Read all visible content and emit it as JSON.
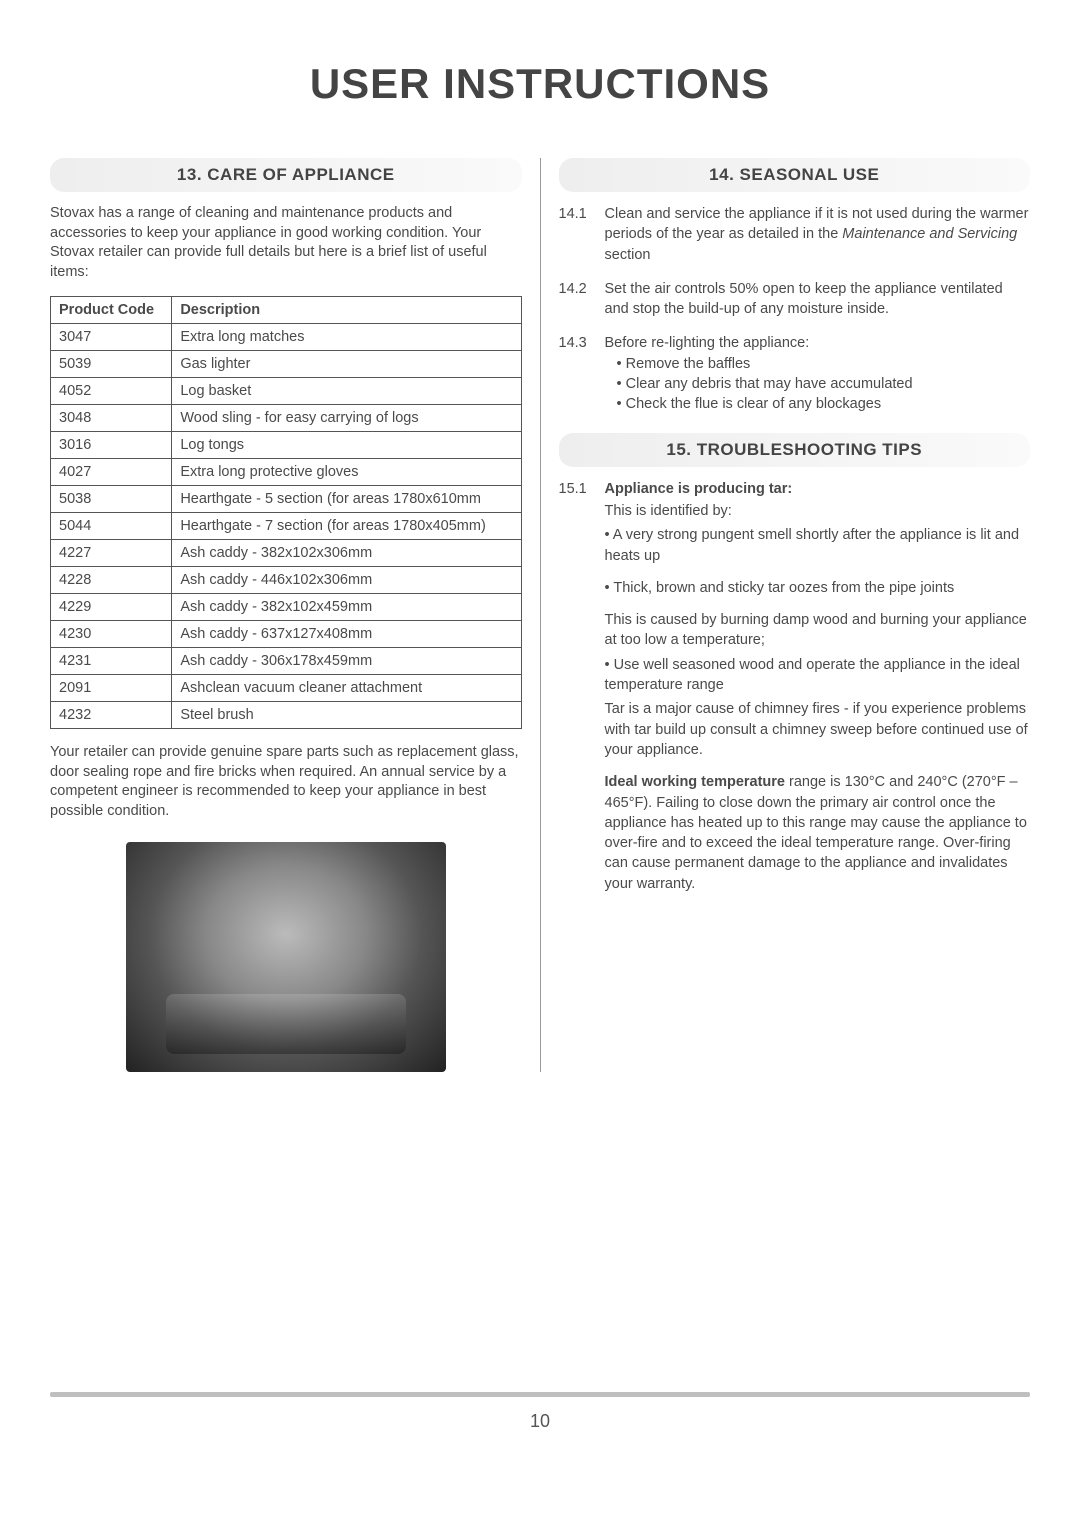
{
  "page": {
    "title": "USER INSTRUCTIONS",
    "page_number": "10"
  },
  "section13": {
    "heading": "13. CARE OF APPLIANCE",
    "intro": "Stovax has a range of cleaning and maintenance products and accessories to keep your appliance in good working condition. Your Stovax retailer can provide full details but here is a brief list of useful items:",
    "columns": [
      "Product Code",
      "Description"
    ],
    "rows": [
      [
        "3047",
        "Extra long matches"
      ],
      [
        "5039",
        "Gas lighter"
      ],
      [
        "4052",
        "Log basket"
      ],
      [
        "3048",
        "Wood sling - for easy carrying of logs"
      ],
      [
        "3016",
        "Log tongs"
      ],
      [
        "4027",
        "Extra long protective gloves"
      ],
      [
        "5038",
        "Hearthgate - 5 section (for areas 1780x610mm"
      ],
      [
        "5044",
        "Hearthgate - 7 section (for areas 1780x405mm)"
      ],
      [
        "4227",
        "Ash caddy - 382x102x306mm"
      ],
      [
        "4228",
        "Ash caddy - 446x102x306mm"
      ],
      [
        "4229",
        "Ash caddy - 382x102x459mm"
      ],
      [
        "4230",
        "Ash caddy - 637x127x408mm"
      ],
      [
        "4231",
        "Ash caddy - 306x178x459mm"
      ],
      [
        "2091",
        "Ashclean vacuum cleaner attachment"
      ],
      [
        "4232",
        "Steel brush"
      ]
    ],
    "after": "Your retailer can provide genuine spare parts such as replacement glass, door sealing rope and fire bricks when required. An annual service by a competent engineer is recommended to keep your appliance in best possible condition."
  },
  "section14": {
    "heading": "14. SEASONAL USE",
    "items": [
      {
        "num": "14.1",
        "text_pre": "Clean and service the appliance if it is not used during the warmer periods of the year as detailed in the ",
        "text_italic": "Maintenance and Servicing",
        "text_post": " section"
      },
      {
        "num": "14.2",
        "text": "Set the air controls 50% open to keep the appliance ventilated and stop the build-up of any moisture inside."
      },
      {
        "num": "14.3",
        "text": "Before re-lighting the appliance:",
        "subs": [
          "Remove the baffles",
          "Clear any debris that may have accumulated",
          "Check the flue is clear of any blockages"
        ]
      }
    ]
  },
  "section15": {
    "heading": "15. TROUBLESHOOTING TIPS",
    "num": "15.1",
    "title": "Appliance is producing tar:",
    "identified_by": "This is identified by:",
    "id1": "• A very strong pungent smell shortly after the appliance is lit and heats up",
    "id2": "• Thick, brown and sticky tar oozes from the pipe joints",
    "cause": "This is caused by burning damp wood and burning your appliance at too low a temperature;",
    "fix": "• Use well seasoned wood and operate the appliance in the ideal temperature range",
    "tar_note": "Tar is a major cause of chimney fires - if you experience problems with tar build up consult a chimney sweep before continued use of your appliance.",
    "ideal_bold": "Ideal working temperature",
    "ideal_rest": " range is 130°C and 240°C (270°F – 465°F). Failing to close down the primary air control once the appliance has heated up to this range may cause the appliance to over-fire and to exceed the ideal temperature range. Over-firing can cause permanent damage to the appliance and invalidates your warranty."
  }
}
